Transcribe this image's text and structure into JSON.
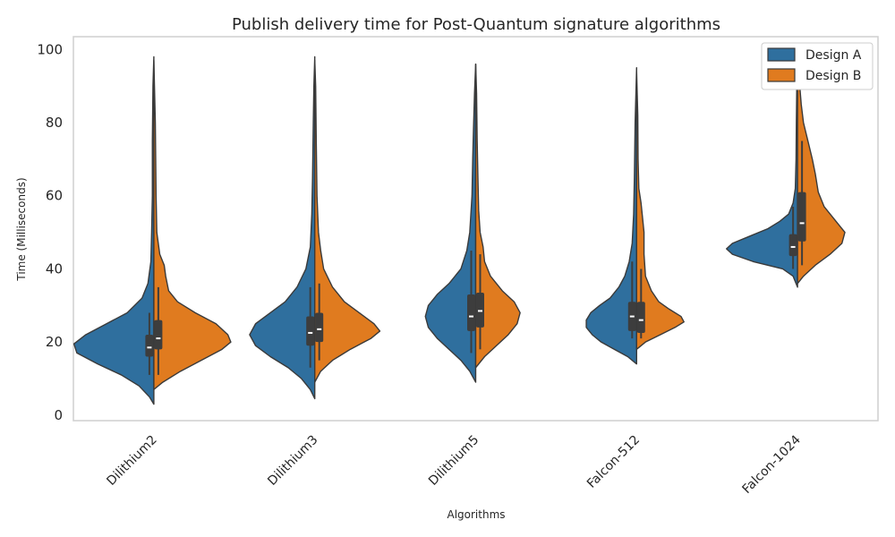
{
  "chart_data": {
    "type": "violin",
    "title": "Publish delivery time for Post-Quantum signature algorithms",
    "xlabel": "Algorithms",
    "ylabel": "Time (Milliseconds)",
    "ylim": [
      -1.5,
      103.5
    ],
    "yticks": [
      0,
      20,
      40,
      60,
      80,
      100
    ],
    "grid": false,
    "legend_position": "top-right",
    "categories": [
      "Dilithium2",
      "Dilithium3",
      "Dilithium5",
      "Falcon-512",
      "Falcon-1024"
    ],
    "series": [
      {
        "name": "Design A",
        "color": "#2f6f9e",
        "side": "left",
        "violins": [
          {
            "min": 3,
            "max": 98,
            "q1": 16,
            "median": 18.5,
            "q3": 22,
            "whisker_low": 11,
            "whisker_high": 28,
            "profile": [
              [
                3,
                0
              ],
              [
                5,
                3
              ],
              [
                8,
                10
              ],
              [
                11,
                22
              ],
              [
                14,
                38
              ],
              [
                17,
                52
              ],
              [
                19.5,
                54
              ],
              [
                22,
                46
              ],
              [
                25,
                32
              ],
              [
                28,
                18
              ],
              [
                32,
                8
              ],
              [
                36,
                4
              ],
              [
                42,
                2
              ],
              [
                50,
                1.5
              ],
              [
                60,
                1
              ],
              [
                75,
                1
              ],
              [
                90,
                0.6
              ],
              [
                98,
                0
              ]
            ]
          },
          {
            "min": 4.5,
            "max": 98,
            "q1": 19,
            "median": 22.5,
            "q3": 27,
            "whisker_low": 13,
            "whisker_high": 35,
            "profile": [
              [
                4.5,
                0
              ],
              [
                7,
                3
              ],
              [
                10,
                9
              ],
              [
                13,
                18
              ],
              [
                16,
                30
              ],
              [
                19,
                40
              ],
              [
                22,
                44
              ],
              [
                25,
                40
              ],
              [
                28,
                30
              ],
              [
                31,
                20
              ],
              [
                35,
                12
              ],
              [
                40,
                6
              ],
              [
                46,
                3
              ],
              [
                55,
                2
              ],
              [
                65,
                1.5
              ],
              [
                80,
                1
              ],
              [
                90,
                0.6
              ],
              [
                98,
                0
              ]
            ]
          },
          {
            "min": 9,
            "max": 96,
            "q1": 23,
            "median": 27,
            "q3": 33,
            "whisker_low": 17,
            "whisker_high": 45,
            "profile": [
              [
                9,
                0
              ],
              [
                12,
                4
              ],
              [
                15,
                10
              ],
              [
                18,
                18
              ],
              [
                21,
                26
              ],
              [
                24,
                32
              ],
              [
                27,
                34
              ],
              [
                30,
                32
              ],
              [
                33,
                26
              ],
              [
                36,
                18
              ],
              [
                40,
                10
              ],
              [
                45,
                6
              ],
              [
                50,
                4
              ],
              [
                60,
                2.5
              ],
              [
                70,
                2
              ],
              [
                78,
                1.5
              ],
              [
                88,
                0.8
              ],
              [
                96,
                0
              ]
            ]
          },
          {
            "min": 14,
            "max": 95,
            "q1": 23,
            "median": 27,
            "q3": 31,
            "whisker_low": 21,
            "whisker_high": 42,
            "profile": [
              [
                14,
                0
              ],
              [
                16,
                6
              ],
              [
                18,
                15
              ],
              [
                20,
                24
              ],
              [
                22,
                30
              ],
              [
                24,
                34
              ],
              [
                26,
                34
              ],
              [
                28,
                31
              ],
              [
                30,
                25
              ],
              [
                32,
                18
              ],
              [
                35,
                12
              ],
              [
                38,
                8
              ],
              [
                42,
                5
              ],
              [
                47,
                3
              ],
              [
                55,
                2
              ],
              [
                65,
                1.5
              ],
              [
                80,
                1
              ],
              [
                95,
                0
              ]
            ]
          },
          {
            "min": 35,
            "max": 96,
            "q1": 43.5,
            "median": 46,
            "q3": 49.5,
            "whisker_low": 40,
            "whisker_high": 57,
            "profile": [
              [
                35,
                0
              ],
              [
                38,
                3
              ],
              [
                40,
                10
              ],
              [
                42,
                30
              ],
              [
                44,
                44
              ],
              [
                45.5,
                48
              ],
              [
                47,
                44
              ],
              [
                49,
                32
              ],
              [
                51,
                20
              ],
              [
                53,
                12
              ],
              [
                55,
                6
              ],
              [
                58,
                3
              ],
              [
                62,
                1.5
              ],
              [
                70,
                1
              ],
              [
                80,
                0.8
              ],
              [
                90,
                0.5
              ],
              [
                96,
                0
              ]
            ]
          }
        ]
      },
      {
        "name": "Design B",
        "color": "#e07b1f",
        "side": "right",
        "violins": [
          {
            "min": 7,
            "max": 97,
            "q1": 18,
            "median": 21,
            "q3": 26,
            "whisker_low": 11,
            "whisker_high": 35,
            "profile": [
              [
                7,
                0
              ],
              [
                9,
                6
              ],
              [
                12,
                18
              ],
              [
                15,
                32
              ],
              [
                18,
                46
              ],
              [
                20,
                52
              ],
              [
                22,
                50
              ],
              [
                25,
                42
              ],
              [
                28,
                28
              ],
              [
                31,
                16
              ],
              [
                34,
                10
              ],
              [
                38,
                8
              ],
              [
                41,
                7
              ],
              [
                44,
                4
              ],
              [
                50,
                2
              ],
              [
                60,
                1.5
              ],
              [
                80,
                1
              ],
              [
                97,
                0
              ]
            ]
          },
          {
            "min": 9,
            "max": 97,
            "q1": 20,
            "median": 23.5,
            "q3": 28,
            "whisker_low": 15,
            "whisker_high": 36,
            "profile": [
              [
                9,
                0
              ],
              [
                12,
                4
              ],
              [
                15,
                12
              ],
              [
                18,
                24
              ],
              [
                21,
                38
              ],
              [
                23,
                44
              ],
              [
                25,
                40
              ],
              [
                28,
                30
              ],
              [
                31,
                20
              ],
              [
                35,
                12
              ],
              [
                40,
                6
              ],
              [
                45,
                4
              ],
              [
                50,
                2.5
              ],
              [
                60,
                1.5
              ],
              [
                75,
                1
              ],
              [
                90,
                0.6
              ],
              [
                97,
                0
              ]
            ]
          },
          {
            "min": 13,
            "max": 96,
            "q1": 24,
            "median": 28.5,
            "q3": 33.5,
            "whisker_low": 18,
            "whisker_high": 44,
            "profile": [
              [
                13,
                0
              ],
              [
                16,
                6
              ],
              [
                19,
                14
              ],
              [
                22,
                22
              ],
              [
                25,
                28
              ],
              [
                28,
                30
              ],
              [
                31,
                26
              ],
              [
                34,
                18
              ],
              [
                38,
                10
              ],
              [
                42,
                6
              ],
              [
                46,
                5
              ],
              [
                50,
                3
              ],
              [
                56,
                2
              ],
              [
                65,
                1.5
              ],
              [
                75,
                1
              ],
              [
                88,
                0.6
              ],
              [
                96,
                0
              ]
            ]
          },
          {
            "min": 18,
            "max": 94,
            "q1": 22.5,
            "median": 26,
            "q3": 31,
            "whisker_low": 21,
            "whisker_high": 40,
            "profile": [
              [
                18,
                0
              ],
              [
                20,
                6
              ],
              [
                22,
                16
              ],
              [
                24,
                26
              ],
              [
                25.5,
                32
              ],
              [
                27,
                30
              ],
              [
                29,
                22
              ],
              [
                31,
                15
              ],
              [
                34,
                10
              ],
              [
                38,
                6
              ],
              [
                44,
                5
              ],
              [
                50,
                5
              ],
              [
                54,
                4
              ],
              [
                58,
                3
              ],
              [
                62,
                1.5
              ],
              [
                70,
                1
              ],
              [
                82,
                0.8
              ],
              [
                94,
                0
              ]
            ]
          },
          {
            "min": 36,
            "max": 96,
            "q1": 47.5,
            "median": 52.5,
            "q3": 61,
            "whisker_low": 41,
            "whisker_high": 75,
            "profile": [
              [
                36,
                0
              ],
              [
                38,
                4
              ],
              [
                41,
                12
              ],
              [
                44,
                22
              ],
              [
                47,
                30
              ],
              [
                50,
                32
              ],
              [
                53,
                26
              ],
              [
                57,
                18
              ],
              [
                61,
                14
              ],
              [
                66,
                12
              ],
              [
                70,
                10
              ],
              [
                75,
                7
              ],
              [
                80,
                4
              ],
              [
                85,
                2.5
              ],
              [
                90,
                1.5
              ],
              [
                96,
                0
              ]
            ]
          }
        ]
      }
    ]
  }
}
